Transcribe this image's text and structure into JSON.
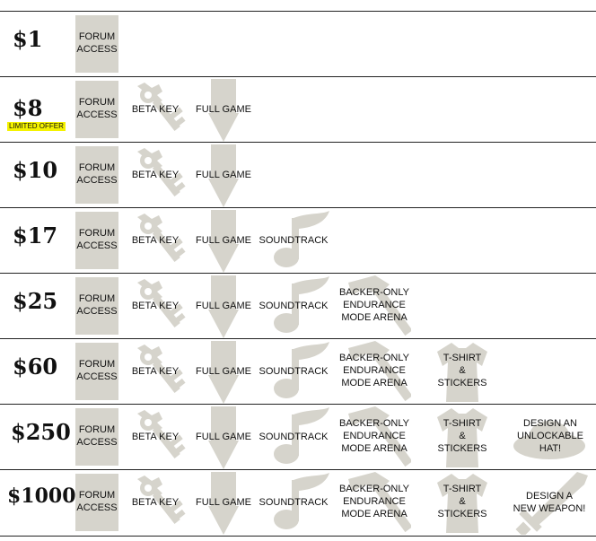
{
  "icons": {
    "key": "key-icon",
    "arrow": "down-arrow-icon",
    "note": "music-note-icon",
    "hammer": "hammer-icon",
    "shirt": "tshirt-icon",
    "hat": "hat-icon",
    "sword": "sword-icon"
  },
  "colors": {
    "icon_gray": "#d6d4cc",
    "badge_yellow": "#f4f200",
    "divider": "#222222"
  },
  "labels": {
    "forum_1": "FORUM",
    "forum_2": "ACCESS",
    "beta": "BETA KEY",
    "full": "FULL GAME",
    "sound": "SOUNDTRACK",
    "arena_1": "BACKER-ONLY",
    "arena_2": "ENDURANCE",
    "arena_3": "MODE ARENA",
    "shirt_1": "T-SHIRT",
    "shirt_2": "&",
    "shirt_3": "STICKERS",
    "hat_1": "DESIGN AN",
    "hat_2": "UNLOCKABLE",
    "hat_3": "HAT!",
    "weapon_1": "DESIGN A",
    "weapon_2": "NEW WEAPON!"
  },
  "tiers": [
    {
      "price": "$1"
    },
    {
      "price": "$8",
      "badge": "LIMITED OFFER"
    },
    {
      "price": "$10"
    },
    {
      "price": "$17"
    },
    {
      "price": "$25"
    },
    {
      "price": "$60"
    },
    {
      "price": "$250"
    },
    {
      "price": "$1000"
    }
  ]
}
